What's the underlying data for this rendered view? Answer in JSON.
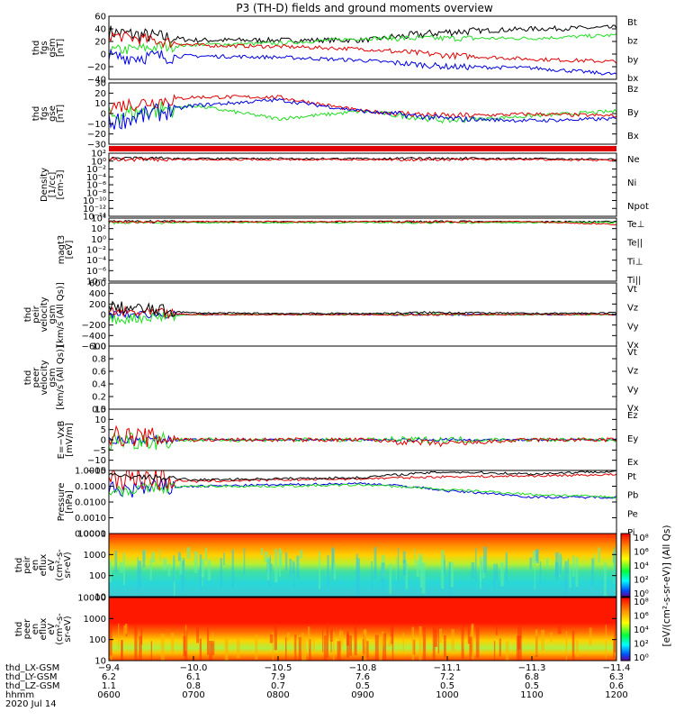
{
  "title": "P3 (TH-D) fields and ground moments overview",
  "colors": {
    "black": "#000000",
    "red": "#e00000",
    "green": "#22dd22",
    "blue": "#0000e0"
  },
  "panels": [
    {
      "id": "fgs-gsm",
      "ylabel": [
        "thd",
        "fgs",
        "gsm",
        "[nT]"
      ],
      "yticks": [
        "60",
        "40",
        "20",
        "0",
        "−20",
        "−40"
      ],
      "ylim": [
        -40,
        60
      ],
      "legend": [
        {
          "text": "Bt",
          "color": "black"
        },
        {
          "text": "bz",
          "color": "red"
        },
        {
          "text": "by",
          "color": "green"
        },
        {
          "text": "bx",
          "color": "blue"
        }
      ]
    },
    {
      "id": "fgs-gse",
      "ylabel": [
        "thd",
        "fgs",
        "gse",
        "[nT]"
      ],
      "yticks": [
        "30",
        "20",
        "10",
        "0",
        "−10",
        "−20",
        "−30"
      ],
      "ylim": [
        -35,
        30
      ],
      "legend": [
        {
          "text": "Bz",
          "color": "red"
        },
        {
          "text": "By",
          "color": "green"
        },
        {
          "text": "Bx",
          "color": "blue"
        }
      ]
    },
    {
      "id": "density",
      "ylabel": [
        "Density",
        "[1/cc]",
        "[cm-3]"
      ],
      "yticks": [
        "10²",
        "10⁰",
        "10⁻²",
        "10⁻⁴",
        "10⁻⁶",
        "10⁻⁸",
        "10⁻¹⁰",
        "10⁻¹²",
        "10⁻¹⁴"
      ],
      "legend": [
        {
          "text": "Ne",
          "color": "red"
        },
        {
          "text": "Ni",
          "color": "black"
        },
        {
          "text": "Npot",
          "color": "blue"
        }
      ]
    },
    {
      "id": "temperature",
      "ylabel": [
        "magt3",
        "[eV]"
      ],
      "yticks": [
        "10⁴",
        "10²",
        "10⁰",
        "10⁻²",
        "10⁻⁴",
        "10⁻⁶",
        "10⁻⁸"
      ],
      "legend": [
        {
          "text": "Te⊥",
          "color": "red"
        },
        {
          "text": "Te||",
          "color": "black"
        },
        {
          "text": "Ti⊥",
          "color": "blue"
        },
        {
          "text": "Ti||",
          "color": "green"
        }
      ]
    },
    {
      "id": "peir-velocity",
      "ylabel": [
        "thd",
        "peir",
        "velocity",
        "gsm",
        "[km/s (All Qs)]"
      ],
      "yticks": [
        "600",
        "400",
        "200",
        "0",
        "−200",
        "−400",
        "−600"
      ],
      "ylim": [
        -600,
        600
      ],
      "legend": [
        {
          "text": "Vt",
          "color": "black"
        },
        {
          "text": "Vz",
          "color": "red"
        },
        {
          "text": "Vy",
          "color": "green"
        },
        {
          "text": "Vx",
          "color": "blue"
        }
      ]
    },
    {
      "id": "peer-velocity",
      "ylabel": [
        "thd",
        "peer",
        "velocity",
        "gsm",
        "[km/s (All Qs)]"
      ],
      "yticks": [
        "1.0",
        "0.8",
        "0.6",
        "0.4",
        "0.2",
        "0.0"
      ],
      "ylim": [
        0,
        1
      ],
      "legend": [
        {
          "text": "Vt",
          "color": "black"
        },
        {
          "text": "Vz",
          "color": "red"
        },
        {
          "text": "Vy",
          "color": "green"
        },
        {
          "text": "Vx",
          "color": "blue"
        }
      ]
    },
    {
      "id": "efield",
      "ylabel": [
        "E=−VxB",
        "[mV/m]"
      ],
      "yticks": [
        "15",
        "10",
        "5",
        "0",
        "−5",
        "−10",
        "−15"
      ],
      "ylim": [
        -15,
        15
      ],
      "legend": [
        {
          "text": "Ez",
          "color": "red"
        },
        {
          "text": "Ey",
          "color": "green"
        },
        {
          "text": "Ex",
          "color": "blue"
        }
      ]
    },
    {
      "id": "pressure",
      "ylabel": [
        "Pressure",
        "[nPa]"
      ],
      "yticks": [
        "1.0000",
        "0.1000",
        "0.0100",
        "0.0010",
        "0.0001"
      ],
      "legend": [
        {
          "text": "Pt",
          "color": "black"
        },
        {
          "text": "Pb",
          "color": "red"
        },
        {
          "text": "Pe",
          "color": "green"
        },
        {
          "text": "Pi",
          "color": "blue"
        }
      ]
    },
    {
      "id": "peir-eflux",
      "ylabel": [
        "thd",
        "peir",
        "en",
        "eflux",
        "eV",
        "(cm²-s-",
        "sr-eV)"
      ],
      "yticks": [
        "10000",
        "1000",
        "100",
        "10"
      ]
    },
    {
      "id": "peer-eflux",
      "ylabel": [
        "thd",
        "peer",
        "en",
        "eflux",
        "eV",
        "(cm²-s-",
        "sr-eV)"
      ],
      "yticks": [
        "10000",
        "1000",
        "100",
        "10"
      ]
    }
  ],
  "colorbar": {
    "label": "[eV/(cm²-s-sr-eV)] (All Qs)",
    "ticks_top": [
      "10⁸",
      "10⁶",
      "10⁴",
      "10²",
      "10⁰"
    ],
    "ticks_bottom": [
      "10⁸",
      "10⁶",
      "10⁴",
      "10²",
      "10⁰"
    ]
  },
  "xaxis": {
    "rows": [
      {
        "label": "thd_LX-GSM",
        "values": [
          "−9.4",
          "−10.0",
          "−10.5",
          "−10.8",
          "−11.1",
          "−11.3",
          "−11.4"
        ]
      },
      {
        "label": "thd_LY-GSM",
        "values": [
          "6.2",
          "6.1",
          "7.9",
          "7.6",
          "7.2",
          "6.8",
          "6.3"
        ]
      },
      {
        "label": "thd_LZ-GSM",
        "values": [
          "1.1",
          "0.8",
          "0.7",
          "0.5",
          "0.5",
          "0.5",
          "0.6"
        ]
      },
      {
        "label": "hhmm",
        "values": [
          "0600",
          "0700",
          "0800",
          "0900",
          "1000",
          "1100",
          "1200"
        ]
      }
    ],
    "date": "2020 Jul 14"
  },
  "chart_data": [
    {
      "type": "line",
      "title": "P3 (TH-D) fields and ground moments overview",
      "ylabel": "thd fgs gsm [nT]",
      "x": [
        "0600",
        "0700",
        "0800",
        "0900",
        "1000",
        "1100",
        "1200"
      ],
      "ylim": [
        -40,
        60
      ],
      "series": [
        {
          "name": "Bt",
          "values": [
            35,
            22,
            22,
            22,
            35,
            40,
            42
          ]
        },
        {
          "name": "bz",
          "values": [
            30,
            14,
            12,
            8,
            -2,
            -8,
            -12
          ]
        },
        {
          "name": "by",
          "values": [
            5,
            15,
            17,
            25,
            25,
            25,
            30
          ]
        },
        {
          "name": "bx",
          "values": [
            -5,
            -3,
            -5,
            -10,
            -20,
            -22,
            -32
          ]
        }
      ]
    },
    {
      "type": "line",
      "ylabel": "thd fgs gse [nT]",
      "x": [
        "0600",
        "0700",
        "0800",
        "0900",
        "1000",
        "1100",
        "1200"
      ],
      "ylim": [
        -35,
        30
      ],
      "series": [
        {
          "name": "Bz",
          "values": [
            5,
            15,
            15,
            0,
            -5,
            -3,
            -5
          ]
        },
        {
          "name": "By",
          "values": [
            -5,
            6,
            -8,
            0,
            -10,
            -5,
            0
          ]
        },
        {
          "name": "Bx",
          "values": [
            -12,
            6,
            12,
            0,
            -8,
            -10,
            -8
          ]
        }
      ]
    },
    {
      "type": "line",
      "ylabel": "thd peir velocity gsm [km/s (All Qs)]",
      "x": [
        "0600",
        "0700",
        "0800",
        "0900",
        "1000",
        "1100",
        "1200"
      ],
      "ylim": [
        -600,
        600
      ],
      "series": [
        {
          "name": "Vt",
          "values": [
            150,
            30,
            20,
            20,
            40,
            20,
            30
          ]
        },
        {
          "name": "Vz",
          "values": [
            50,
            0,
            0,
            0,
            0,
            0,
            0
          ]
        },
        {
          "name": "Vy",
          "values": [
            -100,
            0,
            0,
            0,
            0,
            0,
            0
          ]
        },
        {
          "name": "Vx",
          "values": [
            0,
            0,
            0,
            0,
            0,
            0,
            0
          ]
        }
      ]
    },
    {
      "type": "line",
      "ylabel": "E=-VxB [mV/m]",
      "x": [
        "0600",
        "0700",
        "0800",
        "0900",
        "1000",
        "1100",
        "1200"
      ],
      "ylim": [
        -15,
        15
      ],
      "series": [
        {
          "name": "Ez",
          "values": [
            2,
            0,
            0,
            0,
            -2,
            0,
            0
          ]
        },
        {
          "name": "Ey",
          "values": [
            0,
            0,
            0,
            0,
            0,
            0,
            0
          ]
        },
        {
          "name": "Ex",
          "values": [
            0,
            0,
            0,
            0,
            0,
            0,
            0
          ]
        }
      ]
    },
    {
      "type": "line",
      "ylabel": "Pressure [nPa]",
      "x": [
        "0600",
        "0700",
        "0800",
        "0900",
        "1000",
        "1100",
        "1200"
      ],
      "log_y": true,
      "series": [
        {
          "name": "Pt",
          "values": [
            0.5,
            0.25,
            0.3,
            0.35,
            0.8,
            0.6,
            0.9
          ]
        },
        {
          "name": "Pb",
          "values": [
            0.4,
            0.2,
            0.25,
            0.3,
            0.4,
            0.45,
            0.55
          ]
        },
        {
          "name": "Pe",
          "values": [
            0.05,
            0.1,
            0.1,
            0.12,
            0.06,
            0.03,
            0.02
          ]
        },
        {
          "name": "Pi",
          "values": [
            0.05,
            0.1,
            0.12,
            0.15,
            0.05,
            0.02,
            0.02
          ]
        }
      ]
    },
    {
      "type": "heatmap",
      "ylabel": "thd peir en eflux eV (cm2-s-sr-eV)",
      "x": [
        "0600",
        "0700",
        "0800",
        "0900",
        "1000",
        "1100",
        "1200"
      ],
      "yticks": [
        "10000",
        "1000",
        "100",
        "10"
      ],
      "colorbar": "[eV/(cm2-s-sr-eV)] (All Qs)"
    },
    {
      "type": "heatmap",
      "ylabel": "thd peer en eflux eV (cm2-s-sr-eV)",
      "x": [
        "0600",
        "0700",
        "0800",
        "0900",
        "1000",
        "1100",
        "1200"
      ],
      "yticks": [
        "10000",
        "1000",
        "100",
        "10"
      ],
      "colorbar": "[eV/(cm2-s-sr-eV)] (All Qs)"
    }
  ]
}
